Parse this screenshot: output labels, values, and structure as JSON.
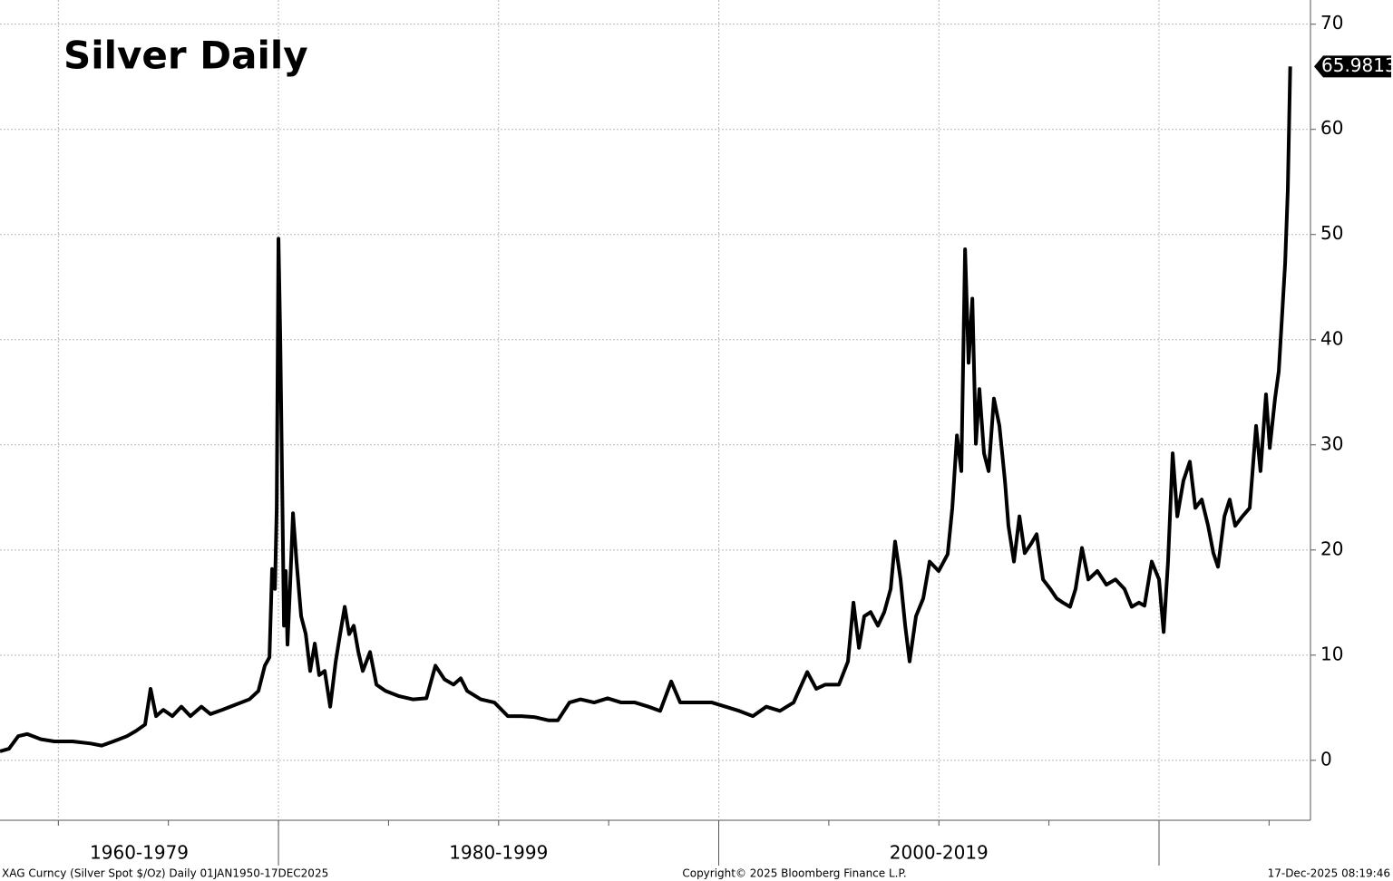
{
  "chart_data": {
    "type": "line",
    "title": "Silver Daily",
    "series": [
      {
        "name": "XAG Curncy",
        "color": "#000000",
        "x": [
          1967.35,
          1967.76,
          1968.18,
          1968.59,
          1969.21,
          1969.82,
          1970.65,
          1971.47,
          1971.97,
          1972.5,
          1973.12,
          1973.53,
          1973.94,
          1974.19,
          1974.44,
          1974.77,
          1975.18,
          1975.59,
          1976.0,
          1976.5,
          1976.91,
          1977.45,
          1978.06,
          1978.68,
          1979.09,
          1979.38,
          1979.59,
          1979.71,
          1979.84,
          1979.92,
          1980.0,
          1980.08,
          1980.16,
          1980.25,
          1980.33,
          1980.41,
          1980.54,
          1980.66,
          1980.82,
          1981.03,
          1981.24,
          1981.44,
          1981.65,
          1981.85,
          1982.1,
          1982.35,
          1982.6,
          1982.8,
          1983.01,
          1983.21,
          1983.42,
          1983.63,
          1983.83,
          1984.16,
          1984.45,
          1984.86,
          1985.48,
          1986.1,
          1986.72,
          1987.13,
          1987.54,
          1987.95,
          1988.28,
          1988.57,
          1989.19,
          1989.81,
          1990.42,
          1991.04,
          1991.66,
          1992.28,
          1992.69,
          1993.22,
          1993.72,
          1994.34,
          1994.95,
          1995.57,
          1996.19,
          1996.81,
          1997.34,
          1997.84,
          1998.25,
          1998.87,
          1999.69,
          2000.31,
          2000.93,
          2001.55,
          2002.16,
          2002.78,
          2003.4,
          2004.02,
          2004.43,
          2004.84,
          2005.46,
          2005.87,
          2006.12,
          2006.37,
          2006.61,
          2006.9,
          2007.23,
          2007.52,
          2007.81,
          2008.01,
          2008.26,
          2008.47,
          2008.67,
          2008.96,
          2009.29,
          2009.58,
          2009.99,
          2010.4,
          2010.61,
          2010.82,
          2011.02,
          2011.19,
          2011.35,
          2011.52,
          2011.68,
          2011.84,
          2012.05,
          2012.26,
          2012.5,
          2012.75,
          2013.0,
          2013.16,
          2013.41,
          2013.66,
          2013.9,
          2014.19,
          2014.44,
          2014.73,
          2015.06,
          2015.35,
          2015.63,
          2015.96,
          2016.21,
          2016.5,
          2016.79,
          2017.2,
          2017.61,
          2018.02,
          2018.43,
          2018.76,
          2019.09,
          2019.34,
          2019.67,
          2020.0,
          2020.21,
          2020.41,
          2020.62,
          2020.83,
          2021.11,
          2021.4,
          2021.65,
          2021.94,
          2022.23,
          2022.47,
          2022.68,
          2022.97,
          2023.21,
          2023.46,
          2023.79,
          2024.12,
          2024.41,
          2024.61,
          2024.86,
          2025.03,
          2025.27,
          2025.44,
          2025.61,
          2025.73,
          2025.85,
          2025.96
        ],
        "values": [
          0.86,
          1.1,
          2.3,
          2.5,
          2.0,
          1.8,
          1.8,
          1.6,
          1.4,
          1.8,
          2.3,
          2.8,
          3.4,
          6.8,
          4.2,
          4.8,
          4.2,
          5.1,
          4.2,
          5.1,
          4.4,
          4.8,
          5.3,
          5.8,
          6.6,
          9.0,
          9.8,
          18.2,
          16.3,
          24,
          49.6,
          40.4,
          27.5,
          12.8,
          18,
          11,
          17.2,
          23.5,
          18.9,
          13.7,
          12,
          8.5,
          11.1,
          8.1,
          8.5,
          5.1,
          9.4,
          12,
          14.6,
          12,
          12.8,
          10.3,
          8.5,
          10.3,
          7.2,
          6.6,
          6.1,
          5.8,
          5.9,
          9.0,
          7.7,
          7.2,
          7.8,
          6.6,
          5.8,
          5.5,
          4.2,
          4.2,
          4.1,
          3.8,
          3.8,
          5.5,
          5.8,
          5.5,
          5.9,
          5.5,
          5.5,
          5.1,
          4.7,
          7.5,
          5.5,
          5.5,
          5.5,
          5.1,
          4.7,
          4.2,
          5.1,
          4.7,
          5.5,
          8.4,
          6.8,
          7.2,
          7.2,
          9.4,
          15,
          10.7,
          13.7,
          14.1,
          12.8,
          14.1,
          16.3,
          20.8,
          17.2,
          12.8,
          9.4,
          13.7,
          15.4,
          18.9,
          18,
          19.6,
          24,
          30.9,
          27.5,
          48.6,
          37.8,
          43.9,
          30.1,
          35.3,
          29.2,
          27.5,
          34.4,
          31.8,
          26.6,
          22.3,
          18.9,
          23.2,
          19.7,
          20.6,
          21.5,
          17.2,
          16.3,
          15.4,
          15,
          14.6,
          16.3,
          20.2,
          17.2,
          18,
          16.7,
          17.2,
          16.3,
          14.6,
          15,
          14.7,
          18.9,
          17.2,
          12.2,
          18.9,
          29.2,
          23.2,
          26.6,
          28.4,
          24,
          24.8,
          22.3,
          19.7,
          18.4,
          23.2,
          24.8,
          22.3,
          23.2,
          24,
          31.8,
          27.5,
          34.8,
          29.7,
          34.4,
          37,
          43,
          47.3,
          54.2,
          65.9813
        ]
      }
    ],
    "xlim": [
      1967.35,
      2026.88
    ],
    "xticks": [
      1970,
      1975,
      1980,
      1985,
      1990,
      1995,
      2000,
      2005,
      2010,
      2015,
      2020,
      2025
    ],
    "period_bounds": [
      1980,
      2000,
      2020
    ],
    "x_periods": [
      "1960-1979",
      "1980-1999",
      "2000-2019"
    ],
    "ylim": [
      -5.7,
      72.3
    ],
    "yticks": [
      0,
      10,
      20,
      30,
      40,
      50,
      60,
      70
    ],
    "grid": true,
    "footnote_left": "XAG Curncy (Silver Spot  $/Oz) Daily 01JAN1950-17DEC2025",
    "footnote_center": "Copyright© 2025 Bloomberg Finance L.P.",
    "footnote_right": "17-Dec-2025 08:19:46"
  }
}
